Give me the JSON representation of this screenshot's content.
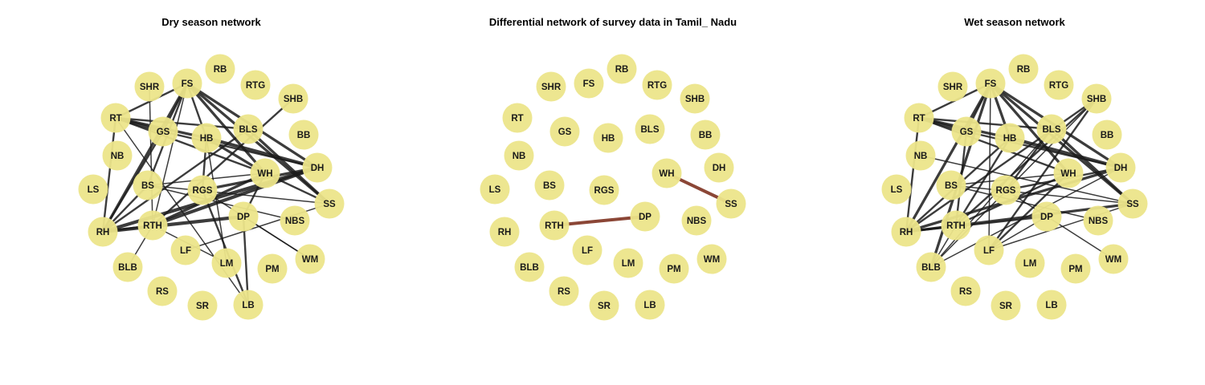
{
  "colors": {
    "node_fill": "#ece58a",
    "edge": "#1a1a1a",
    "diff_edge": "#8b4636",
    "background": "#ffffff"
  },
  "nodes": [
    "RB",
    "SHR",
    "FS",
    "RTG",
    "SHB",
    "RT",
    "GS",
    "HB",
    "BLS",
    "BB",
    "NB",
    "WH",
    "DH",
    "LS",
    "BS",
    "RGS",
    "SS",
    "RH",
    "RTH",
    "DP",
    "NBS",
    "BLB",
    "LF",
    "LM",
    "PM",
    "WM",
    "RS",
    "SR",
    "LB"
  ],
  "panels": [
    {
      "key": "dry",
      "title": "Dry season network",
      "edges": [
        [
          "RT",
          "FS",
          2
        ],
        [
          "RT",
          "GS",
          4
        ],
        [
          "RT",
          "HB",
          3
        ],
        [
          "RT",
          "WH",
          2
        ],
        [
          "RT",
          "RH",
          2
        ],
        [
          "RT",
          "LB",
          1
        ],
        [
          "RT",
          "BLS",
          2
        ],
        [
          "FS",
          "RH",
          3
        ],
        [
          "FS",
          "BS",
          2
        ],
        [
          "FS",
          "HB",
          2
        ],
        [
          "FS",
          "WH",
          3
        ],
        [
          "FS",
          "DH",
          3
        ],
        [
          "FS",
          "SS",
          3
        ],
        [
          "FS",
          "RTH",
          1
        ],
        [
          "FS",
          "GS",
          2
        ],
        [
          "SHR",
          "RTH",
          1
        ],
        [
          "SHB",
          "RTH",
          2
        ],
        [
          "GS",
          "RH",
          2
        ],
        [
          "GS",
          "DH",
          2
        ],
        [
          "HB",
          "WH",
          3
        ],
        [
          "HB",
          "DH",
          4
        ],
        [
          "HB",
          "RGS",
          2
        ],
        [
          "HB",
          "LM",
          1
        ],
        [
          "BLS",
          "SS",
          3
        ],
        [
          "BLS",
          "RH",
          2
        ],
        [
          "WH",
          "BS",
          1
        ],
        [
          "WH",
          "SS",
          2
        ],
        [
          "WH",
          "RTH",
          3
        ],
        [
          "WH",
          "DP",
          2
        ],
        [
          "DH",
          "RTH",
          4
        ],
        [
          "DH",
          "RGS",
          3
        ],
        [
          "DH",
          "RH",
          4
        ],
        [
          "BS",
          "RH",
          2
        ],
        [
          "BS",
          "NBS",
          1
        ],
        [
          "BS",
          "SS",
          1
        ],
        [
          "RGS",
          "LB",
          2
        ],
        [
          "RGS",
          "WM",
          1
        ],
        [
          "RH",
          "DP",
          4
        ],
        [
          "RH",
          "RTH",
          2
        ],
        [
          "RTH",
          "LM",
          1
        ],
        [
          "DP",
          "WM",
          1
        ],
        [
          "DP",
          "LB",
          2
        ],
        [
          "BLB",
          "RTH",
          1
        ],
        [
          "LF",
          "SS",
          1
        ]
      ]
    },
    {
      "key": "diff",
      "title": "Differential network of survey data in Tamil_ Nadu",
      "edges": [
        [
          "RTH",
          "DP",
          4
        ],
        [
          "WH",
          "SS",
          4
        ]
      ]
    },
    {
      "key": "wet",
      "title": "Wet season network",
      "edges": [
        [
          "RT",
          "FS",
          2
        ],
        [
          "RT",
          "GS",
          4
        ],
        [
          "RT",
          "HB",
          3
        ],
        [
          "RT",
          "WH",
          2
        ],
        [
          "RT",
          "RH",
          2
        ],
        [
          "RT",
          "BLS",
          2
        ],
        [
          "FS",
          "RH",
          3
        ],
        [
          "FS",
          "HB",
          3
        ],
        [
          "FS",
          "WH",
          3
        ],
        [
          "FS",
          "DH",
          3
        ],
        [
          "FS",
          "SS",
          3
        ],
        [
          "FS",
          "LF",
          1
        ],
        [
          "FS",
          "BLB",
          3
        ],
        [
          "FS",
          "GS",
          2
        ],
        [
          "SHB",
          "RH",
          2
        ],
        [
          "SHB",
          "RTH",
          2
        ],
        [
          "SHB",
          "LF",
          2
        ],
        [
          "SHB",
          "BLB",
          1
        ],
        [
          "GS",
          "RTH",
          2
        ],
        [
          "GS",
          "DH",
          2
        ],
        [
          "HB",
          "DH",
          4
        ],
        [
          "HB",
          "RTH",
          2
        ],
        [
          "HB",
          "RH",
          2
        ],
        [
          "BLS",
          "SS",
          3
        ],
        [
          "BLS",
          "RGS",
          2
        ],
        [
          "BLS",
          "BLB",
          1
        ],
        [
          "NB",
          "SS",
          1
        ],
        [
          "WH",
          "BS",
          1
        ],
        [
          "WH",
          "RTH",
          2
        ],
        [
          "WH",
          "LF",
          2
        ],
        [
          "DH",
          "RH",
          3
        ],
        [
          "DH",
          "RGS",
          2
        ],
        [
          "DH",
          "BLB",
          1
        ],
        [
          "BS",
          "NBS",
          1
        ],
        [
          "BS",
          "SS",
          1
        ],
        [
          "RGS",
          "WM",
          1
        ],
        [
          "RH",
          "SS",
          3
        ],
        [
          "RH",
          "RTH",
          2
        ],
        [
          "RH",
          "DP",
          2
        ],
        [
          "LF",
          "SS",
          1
        ],
        [
          "DP",
          "LF",
          1
        ],
        [
          "BLB",
          "RTH",
          1
        ]
      ]
    }
  ]
}
